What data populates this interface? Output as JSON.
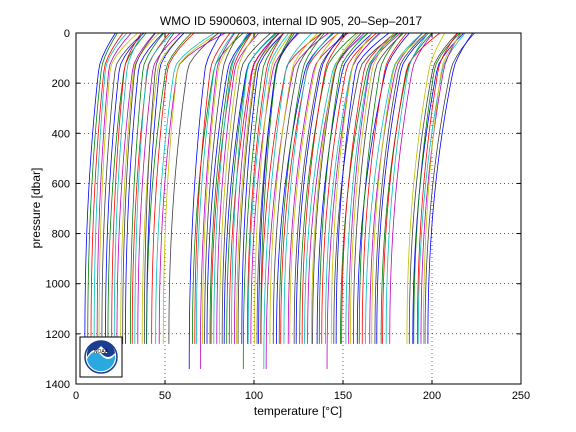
{
  "chart_data": {
    "type": "line",
    "title": "WMO ID 5900603, internal ID 905, 20–Sep–2017",
    "xlabel": "temperature [°C]",
    "ylabel": "pressure [dbar]",
    "xlim": [
      0,
      250
    ],
    "ylim": [
      0,
      1400
    ],
    "y_reversed": true,
    "grid": true,
    "grid_style": "dotted",
    "xticks": [
      0,
      50,
      100,
      150,
      200,
      250
    ],
    "yticks": [
      0,
      200,
      400,
      600,
      800,
      1000,
      1200,
      1400
    ],
    "profile_groups": [
      {
        "count": 22,
        "x_bottom_start": 5,
        "x_bottom_end": 40,
        "x_top_offset": 10,
        "surface_kink": 10,
        "max_pressure": 1240
      },
      {
        "count": 6,
        "x_bottom_start": 40,
        "x_bottom_end": 52,
        "x_top_offset": 12,
        "surface_kink": 18,
        "max_pressure": 1240
      },
      {
        "count": 30,
        "x_bottom_start": 64,
        "x_bottom_end": 104,
        "x_top_offset": 14,
        "surface_kink": 10,
        "max_pressure": 1240
      },
      {
        "count": 45,
        "x_bottom_start": 104,
        "x_bottom_end": 176,
        "x_top_offset": 18,
        "surface_kink": 12,
        "max_pressure": 1240
      },
      {
        "count": 10,
        "x_bottom_start": 186,
        "x_bottom_end": 198,
        "x_top_offset": 16,
        "surface_kink": 8,
        "max_pressure": 1240
      }
    ],
    "colors": [
      "#0000ff",
      "#008000",
      "#ff0000",
      "#00bfbf",
      "#bf00bf",
      "#bfbf00",
      "#404040"
    ]
  },
  "logo": {
    "name": "noaa-logo",
    "text": "NOAA"
  }
}
